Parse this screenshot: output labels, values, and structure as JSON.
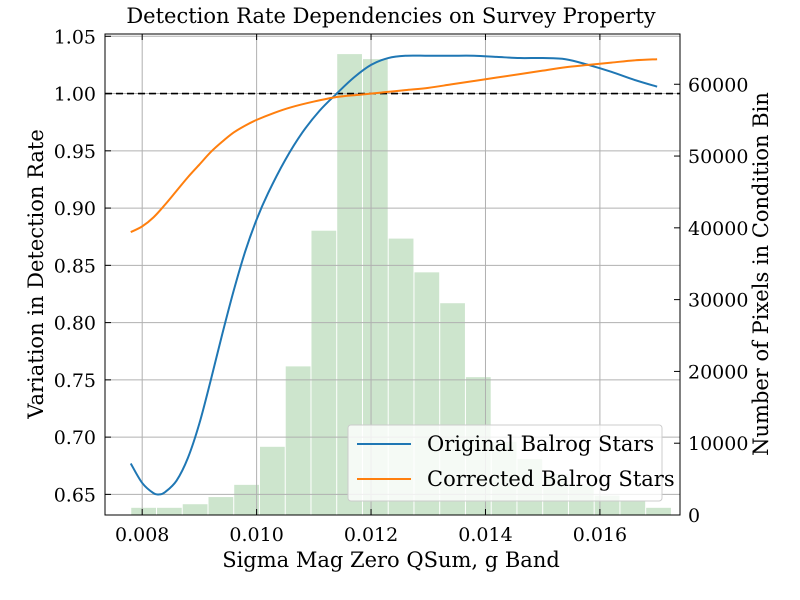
{
  "chart_data": {
    "type": "line",
    "title": "Detection Rate Dependencies on Survey Property",
    "xlabel": "Sigma Mag Zero QSum, g Band",
    "ylabel_left": "Variation in Detection Rate",
    "ylabel_right": "Number of Pixels in Condition Bin",
    "xlim": [
      0.00735,
      0.0174
    ],
    "ylim_left": [
      0.632,
      1.052
    ],
    "ylim_right": [
      0,
      67000
    ],
    "xticks": [
      0.008,
      0.01,
      0.012,
      0.014,
      0.016
    ],
    "xtick_labels": [
      "0.008",
      "0.010",
      "0.012",
      "0.014",
      "0.016"
    ],
    "yticks_left": [
      0.65,
      0.7,
      0.75,
      0.8,
      0.85,
      0.9,
      0.95,
      1.0,
      1.05
    ],
    "ytick_labels_left": [
      "0.65",
      "0.70",
      "0.75",
      "0.80",
      "0.85",
      "0.90",
      "0.95",
      "1.00",
      "1.05"
    ],
    "yticks_right": [
      0,
      10000,
      20000,
      30000,
      40000,
      50000,
      60000
    ],
    "ytick_labels_right": [
      "0",
      "10000",
      "20000",
      "30000",
      "40000",
      "50000",
      "60000"
    ],
    "reference_line": 1.0,
    "grid": true,
    "legend_position": "lower-right",
    "histogram": {
      "color": "#cde5cd",
      "bin_edges": [
        0.0078,
        0.00825,
        0.0087,
        0.00915,
        0.0096,
        0.01005,
        0.0105,
        0.01095,
        0.0114,
        0.01185,
        0.0123,
        0.01275,
        0.0132,
        0.01365,
        0.0141,
        0.01455,
        0.015,
        0.01545,
        0.0159,
        0.01635,
        0.0168,
        0.01725
      ],
      "counts": [
        1000,
        1000,
        1500,
        2500,
        4200,
        9500,
        20700,
        39600,
        64200,
        63500,
        38500,
        33800,
        29500,
        19200,
        10200,
        7800,
        5700,
        4300,
        2700,
        2000,
        1000
      ]
    },
    "series": [
      {
        "name": "Original Balrog Stars",
        "color": "#1f77b4",
        "x": [
          0.0078,
          0.008,
          0.0082,
          0.0083,
          0.0084,
          0.0086,
          0.0088,
          0.009,
          0.0092,
          0.0094,
          0.0096,
          0.0098,
          0.01,
          0.0102,
          0.0105,
          0.0108,
          0.0111,
          0.0114,
          0.0117,
          0.012,
          0.0123,
          0.0126,
          0.013,
          0.0134,
          0.0138,
          0.0142,
          0.0146,
          0.015,
          0.0154,
          0.0158,
          0.0162,
          0.0166,
          0.017
        ],
        "y": [
          0.677,
          0.66,
          0.651,
          0.65,
          0.652,
          0.662,
          0.682,
          0.712,
          0.75,
          0.79,
          0.828,
          0.862,
          0.89,
          0.913,
          0.942,
          0.966,
          0.985,
          1.0,
          1.014,
          1.025,
          1.031,
          1.033,
          1.033,
          1.033,
          1.033,
          1.032,
          1.031,
          1.031,
          1.03,
          1.025,
          1.019,
          1.012,
          1.006
        ]
      },
      {
        "name": "Corrected Balrog Stars",
        "color": "#ff7f0e",
        "x": [
          0.0078,
          0.008,
          0.0082,
          0.0084,
          0.0086,
          0.0088,
          0.009,
          0.0092,
          0.0094,
          0.0096,
          0.0098,
          0.01,
          0.0103,
          0.0106,
          0.011,
          0.0114,
          0.0118,
          0.0122,
          0.0126,
          0.013,
          0.0134,
          0.0138,
          0.0142,
          0.0146,
          0.015,
          0.0154,
          0.0158,
          0.0162,
          0.0166,
          0.017
        ],
        "y": [
          0.879,
          0.884,
          0.892,
          0.903,
          0.915,
          0.927,
          0.938,
          0.949,
          0.958,
          0.966,
          0.972,
          0.977,
          0.983,
          0.988,
          0.993,
          0.997,
          0.999,
          1.001,
          1.003,
          1.005,
          1.008,
          1.011,
          1.014,
          1.017,
          1.02,
          1.023,
          1.025,
          1.027,
          1.029,
          1.03
        ]
      }
    ]
  }
}
